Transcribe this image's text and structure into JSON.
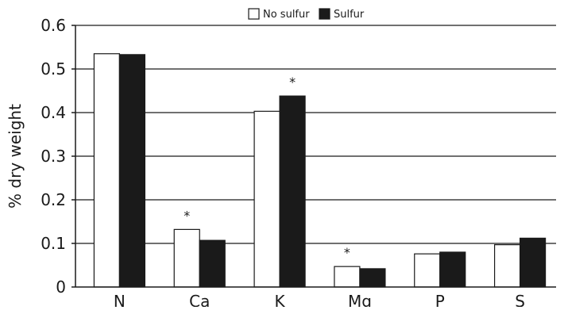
{
  "chart_data": {
    "type": "bar",
    "categories": [
      "N",
      "Ca",
      "K",
      "Mg",
      "P",
      "S"
    ],
    "series": [
      {
        "name": "No sulfur",
        "color": "#ffffff",
        "values": [
          0.535,
          0.132,
          0.403,
          0.047,
          0.076,
          0.097
        ]
      },
      {
        "name": "Sulfur",
        "color": "#1a1a1a",
        "values": [
          0.533,
          0.107,
          0.438,
          0.042,
          0.08,
          0.112
        ]
      }
    ],
    "title": "",
    "xlabel": "",
    "ylabel": "% dry weight",
    "ylim": [
      0,
      0.6
    ],
    "yticks": [
      0,
      0.1,
      0.2,
      0.3,
      0.4,
      0.5,
      0.6
    ],
    "ytick_labels": [
      "0",
      "0.1",
      "0.2",
      "0.3",
      "0.4",
      "0.5",
      "0.6"
    ],
    "grid": "horizontal",
    "legend_position": "top",
    "annotations": [
      {
        "category": "Ca",
        "text": "*"
      },
      {
        "category": "K",
        "text": "*"
      },
      {
        "category": "Mg",
        "text": "*"
      }
    ]
  }
}
